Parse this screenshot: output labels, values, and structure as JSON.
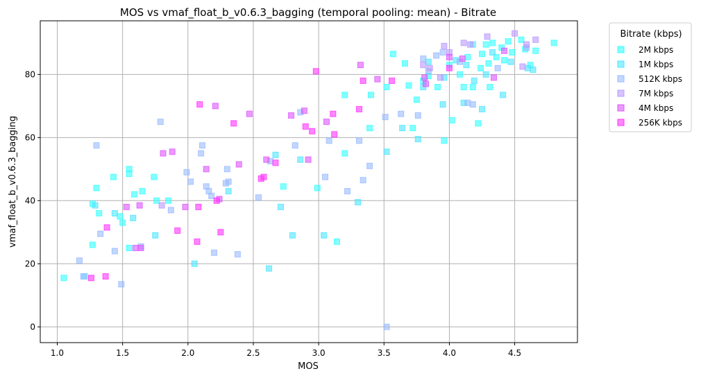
{
  "chart_data": {
    "type": "scatter",
    "title": "MOS vs vmaf_float_b_v0.6.3_bagging (temporal pooling: mean) - Bitrate",
    "xlabel": "MOS",
    "ylabel": "vmaf_float_b_v0.6.3_bagging",
    "xlim": [
      0.87,
      4.98
    ],
    "ylim": [
      -5,
      97
    ],
    "xticks": [
      "1.0",
      "1.5",
      "2.0",
      "2.5",
      "3.0",
      "3.5",
      "4.0",
      "4.5"
    ],
    "yticks": [
      "0",
      "20",
      "40",
      "60",
      "80"
    ],
    "grid": true,
    "legend": {
      "title": "Bitrate (kbps)",
      "placement": "outside-right-top"
    },
    "series": [
      {
        "name": "2M kbps",
        "color": "#33ffff",
        "points": [
          [
            1.05,
            15.5
          ],
          [
            1.27,
            39
          ],
          [
            1.3,
            44
          ],
          [
            1.32,
            36
          ],
          [
            1.43,
            47.5
          ],
          [
            1.48,
            35
          ],
          [
            1.5,
            33
          ],
          [
            1.55,
            50
          ],
          [
            1.55,
            48.5
          ],
          [
            1.59,
            42
          ],
          [
            1.65,
            43
          ],
          [
            1.74,
            47.5
          ],
          [
            1.76,
            40
          ],
          [
            1.85,
            40
          ],
          [
            1.55,
            25
          ],
          [
            1.27,
            26
          ],
          [
            2.73,
            44.5
          ],
          [
            2.99,
            44
          ],
          [
            3.2,
            55
          ],
          [
            3.2,
            73.5
          ],
          [
            3.39,
            63
          ],
          [
            3.4,
            73.5
          ],
          [
            3.52,
            76
          ],
          [
            3.57,
            86.5
          ],
          [
            3.66,
            83.5
          ],
          [
            3.69,
            76.5
          ],
          [
            3.72,
            63
          ],
          [
            3.75,
            72
          ],
          [
            3.8,
            78
          ],
          [
            3.84,
            79.5
          ],
          [
            3.91,
            76
          ],
          [
            3.96,
            59
          ],
          [
            4.0,
            83
          ],
          [
            4.02,
            65.5
          ],
          [
            4.08,
            80
          ],
          [
            4.11,
            76
          ],
          [
            4.14,
            85.5
          ],
          [
            4.18,
            76
          ],
          [
            4.22,
            64.5
          ],
          [
            4.24,
            82
          ],
          [
            4.25,
            86.5
          ],
          [
            4.28,
            89.5
          ],
          [
            4.3,
            83.5
          ],
          [
            4.31,
            76
          ],
          [
            4.33,
            90
          ],
          [
            4.36,
            85.5
          ],
          [
            4.4,
            88.5
          ],
          [
            4.42,
            84.5
          ],
          [
            4.45,
            90.5
          ],
          [
            4.48,
            87
          ],
          [
            4.55,
            91
          ],
          [
            4.58,
            88
          ],
          [
            4.62,
            83
          ],
          [
            4.66,
            87.5
          ],
          [
            4.8,
            90
          ],
          [
            3.14,
            27
          ]
        ]
      },
      {
        "name": "1M kbps",
        "color": "#4ce6ff",
        "points": [
          [
            1.21,
            16
          ],
          [
            1.29,
            38.5
          ],
          [
            1.44,
            36
          ],
          [
            1.58,
            34.5
          ],
          [
            1.75,
            29
          ],
          [
            2.05,
            20
          ],
          [
            2.31,
            43
          ],
          [
            2.62,
            18.5
          ],
          [
            2.67,
            54.5
          ],
          [
            2.71,
            38
          ],
          [
            2.8,
            29
          ],
          [
            2.86,
            53
          ],
          [
            3.04,
            29
          ],
          [
            3.3,
            39.5
          ],
          [
            3.52,
            55.5
          ],
          [
            3.76,
            59.5
          ],
          [
            3.8,
            76
          ],
          [
            3.84,
            84
          ],
          [
            3.95,
            70.5
          ],
          [
            3.96,
            79
          ],
          [
            4.05,
            84.5
          ],
          [
            4.11,
            71
          ],
          [
            4.13,
            83
          ],
          [
            4.19,
            78
          ],
          [
            4.25,
            69
          ],
          [
            4.28,
            80
          ],
          [
            4.33,
            87
          ],
          [
            4.41,
            73.5
          ],
          [
            4.47,
            84
          ],
          [
            4.6,
            82
          ],
          [
            4.64,
            81.5
          ],
          [
            4.18,
            89.5
          ],
          [
            3.64,
            63
          ]
        ]
      },
      {
        "name": "512K kbps",
        "color": "#99bbff",
        "points": [
          [
            1.17,
            21
          ],
          [
            1.2,
            16
          ],
          [
            1.3,
            57.5
          ],
          [
            1.33,
            29.5
          ],
          [
            1.44,
            24
          ],
          [
            1.49,
            13.5
          ],
          [
            1.64,
            25.5
          ],
          [
            1.79,
            65
          ],
          [
            1.87,
            37
          ],
          [
            1.99,
            49
          ],
          [
            2.02,
            46
          ],
          [
            2.1,
            55
          ],
          [
            2.11,
            57.5
          ],
          [
            2.14,
            44.5
          ],
          [
            2.16,
            43
          ],
          [
            2.18,
            41.5
          ],
          [
            2.2,
            23.5
          ],
          [
            2.29,
            45.5
          ],
          [
            2.3,
            50
          ],
          [
            2.31,
            46
          ],
          [
            2.38,
            23
          ],
          [
            2.54,
            41
          ],
          [
            2.63,
            52.5
          ],
          [
            2.82,
            57.5
          ],
          [
            2.86,
            68
          ],
          [
            3.05,
            47.5
          ],
          [
            3.08,
            59
          ],
          [
            3.22,
            43
          ],
          [
            3.31,
            59
          ],
          [
            3.34,
            46.5
          ],
          [
            3.39,
            51
          ],
          [
            3.52,
            0
          ],
          [
            3.51,
            66.5
          ],
          [
            3.63,
            67.5
          ],
          [
            3.76,
            67
          ],
          [
            3.8,
            85
          ],
          [
            3.84,
            81
          ],
          [
            3.9,
            86
          ],
          [
            3.95,
            87
          ],
          [
            4.08,
            84
          ],
          [
            4.14,
            71
          ],
          [
            4.18,
            70.5
          ],
          [
            4.37,
            82
          ],
          [
            4.59,
            88.5
          ]
        ]
      },
      {
        "name": "7M kbps",
        "color": "#bb99ff",
        "points": [
          [
            1.8,
            38.5
          ],
          [
            3.8,
            83
          ],
          [
            3.85,
            82
          ],
          [
            3.93,
            79
          ],
          [
            3.96,
            89
          ],
          [
            4.0,
            87
          ],
          [
            4.11,
            90
          ],
          [
            4.29,
            92
          ],
          [
            4.5,
            93
          ],
          [
            4.59,
            89.5
          ],
          [
            4.66,
            91
          ],
          [
            4.56,
            82.5
          ],
          [
            4.16,
            89.5
          ]
        ]
      },
      {
        "name": "4M kbps",
        "color": "#dd55ff",
        "points": [
          [
            1.53,
            38
          ],
          [
            1.6,
            25
          ],
          [
            1.63,
            38.5
          ],
          [
            1.64,
            25
          ],
          [
            1.81,
            55
          ],
          [
            1.88,
            55.5
          ],
          [
            1.98,
            38
          ],
          [
            2.14,
            50
          ],
          [
            2.21,
            70
          ],
          [
            2.24,
            40.5
          ],
          [
            2.39,
            51.5
          ],
          [
            2.47,
            67.5
          ],
          [
            2.6,
            53
          ],
          [
            2.79,
            67
          ],
          [
            2.89,
            68.5
          ],
          [
            2.92,
            53
          ],
          [
            3.06,
            65
          ],
          [
            3.32,
            83
          ],
          [
            3.81,
            79
          ],
          [
            3.82,
            77
          ],
          [
            4.0,
            85.5
          ],
          [
            4.1,
            85
          ],
          [
            4.34,
            79
          ],
          [
            4.42,
            87.5
          ],
          [
            3.45,
            78.5
          ]
        ]
      },
      {
        "name": "256K kbps",
        "color": "#ff33ff",
        "points": [
          [
            1.26,
            15.5
          ],
          [
            1.37,
            16
          ],
          [
            1.38,
            31.5
          ],
          [
            1.92,
            30.5
          ],
          [
            2.07,
            27
          ],
          [
            2.08,
            38
          ],
          [
            2.09,
            70.5
          ],
          [
            2.22,
            40
          ],
          [
            2.25,
            30
          ],
          [
            2.35,
            64.5
          ],
          [
            2.58,
            47.5
          ],
          [
            2.67,
            52
          ],
          [
            2.9,
            63.5
          ],
          [
            2.95,
            62
          ],
          [
            2.98,
            81
          ],
          [
            3.11,
            67.5
          ],
          [
            3.12,
            61
          ],
          [
            3.31,
            69
          ],
          [
            3.34,
            78
          ],
          [
            3.56,
            78
          ],
          [
            4.0,
            82
          ],
          [
            2.56,
            47
          ]
        ]
      }
    ]
  }
}
